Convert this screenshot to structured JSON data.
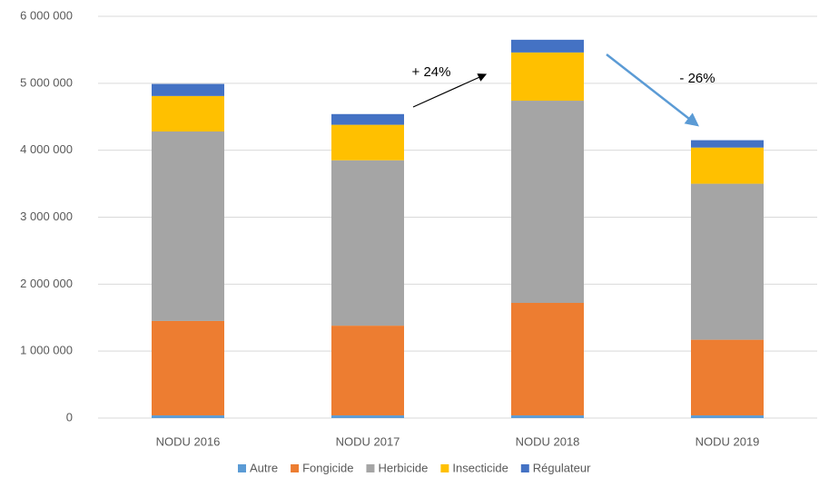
{
  "chart_data": {
    "type": "stacked_bar",
    "categories": [
      "NODU 2016",
      "NODU 2017",
      "NODU 2018",
      "NODU 2019"
    ],
    "series": [
      {
        "name": "Autre",
        "color": "#5b9bd5",
        "values": [
          40000,
          40000,
          40000,
          40000
        ]
      },
      {
        "name": "Fongicide",
        "color": "#ed7d31",
        "values": [
          1410000,
          1340000,
          1680000,
          1130000
        ]
      },
      {
        "name": "Herbicide",
        "color": "#a5a5a5",
        "values": [
          2830000,
          2470000,
          3020000,
          2330000
        ]
      },
      {
        "name": "Insecticide",
        "color": "#ffc000",
        "values": [
          530000,
          530000,
          720000,
          540000
        ]
      },
      {
        "name": "Régulateur",
        "color": "#4472c4",
        "values": [
          180000,
          160000,
          190000,
          110000
        ]
      }
    ],
    "ylim": [
      0,
      6000000
    ],
    "yticks": [
      0,
      {
        "value": 1000000,
        "label": "1 000 000"
      },
      {
        "value": 2000000,
        "label": "2 000 000"
      },
      {
        "value": 3000000,
        "label": "3 000 000"
      },
      {
        "value": 4000000,
        "label": "4 000 000"
      },
      {
        "value": 5000000,
        "label": "5 000 000"
      },
      {
        "value": 6000000,
        "label": "6 000 000"
      }
    ],
    "grid": true,
    "legend": "bottom",
    "annotations": [
      "+ 24%",
      "- 26%"
    ]
  }
}
